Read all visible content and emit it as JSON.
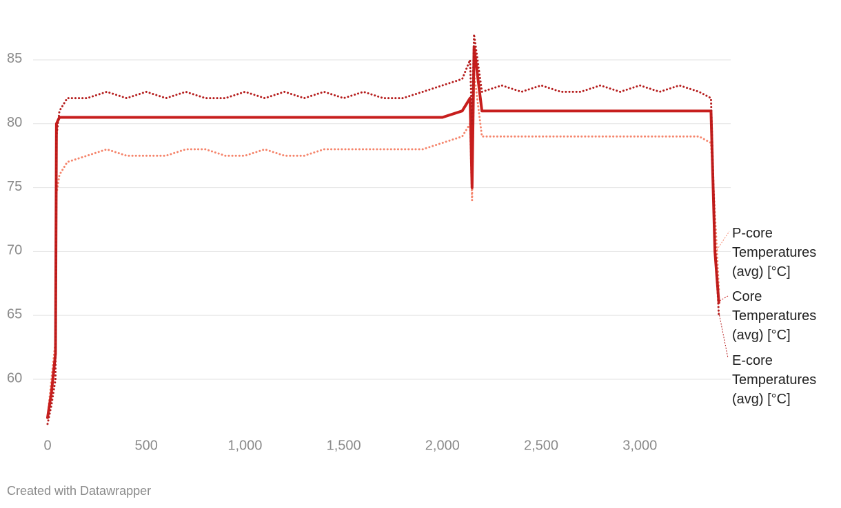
{
  "chart_data": {
    "type": "line",
    "x": [
      0,
      20,
      40,
      45,
      60,
      100,
      200,
      300,
      400,
      500,
      600,
      700,
      800,
      900,
      1000,
      1100,
      1200,
      1300,
      1400,
      1500,
      1600,
      1700,
      1800,
      1900,
      2000,
      2100,
      2140,
      2150,
      2160,
      2200,
      2300,
      2400,
      2500,
      2600,
      2700,
      2800,
      2900,
      3000,
      3100,
      3200,
      3300,
      3360,
      3380,
      3400
    ],
    "series": [
      {
        "name": "P-core Temperatures (avg) [°C]",
        "color": "#f5856c",
        "style": "dotted",
        "values": [
          57,
          60,
          63,
          74.5,
          76,
          77,
          77.5,
          78,
          77.5,
          77.5,
          77.5,
          78,
          78,
          77.5,
          77.5,
          78,
          77.5,
          77.5,
          78,
          78,
          78,
          78,
          78,
          78,
          78.5,
          79,
          80,
          74,
          84,
          79,
          79,
          79,
          79,
          79,
          79,
          79,
          79,
          79,
          79,
          79,
          79,
          78.5,
          73,
          67
        ]
      },
      {
        "name": "Core Temperatures (avg) [°C]",
        "color": "#c71e1d",
        "style": "solid",
        "values": [
          57,
          59,
          62,
          80,
          80.5,
          80.5,
          80.5,
          80.5,
          80.5,
          80.5,
          80.5,
          80.5,
          80.5,
          80.5,
          80.5,
          80.5,
          80.5,
          80.5,
          80.5,
          80.5,
          80.5,
          80.5,
          80.5,
          80.5,
          80.5,
          81,
          82,
          75,
          86,
          81,
          81,
          81,
          81,
          81,
          81,
          81,
          81,
          81,
          81,
          81,
          81,
          81,
          70,
          66
        ]
      },
      {
        "name": "E-core Temperatures (avg) [°C]",
        "color": "#b51c1c",
        "style": "dotted",
        "values": [
          56.5,
          58,
          60,
          79,
          81,
          82,
          82,
          82.5,
          82,
          82.5,
          82,
          82.5,
          82,
          82,
          82.5,
          82,
          82.5,
          82,
          82.5,
          82,
          82.5,
          82,
          82,
          82.5,
          83,
          83.5,
          85,
          80,
          87,
          82.5,
          83,
          82.5,
          83,
          82.5,
          82.5,
          83,
          82.5,
          83,
          82.5,
          83,
          82.5,
          82,
          71,
          65
        ]
      }
    ],
    "xlim": [
      0,
      3460
    ],
    "ylim": [
      55.5,
      88.5
    ],
    "xticks": [
      0,
      500,
      {
        "value": 1000,
        "label": "1,000"
      },
      {
        "value": 1500,
        "label": "1,500"
      },
      {
        "value": 2000,
        "label": "2,000"
      },
      {
        "value": 2500,
        "label": "2,500"
      },
      {
        "value": 3000,
        "label": "3,000"
      }
    ],
    "yticks": [
      60,
      65,
      70,
      75,
      80,
      85
    ],
    "grid": true,
    "footer": "Created with Datawrapper"
  }
}
